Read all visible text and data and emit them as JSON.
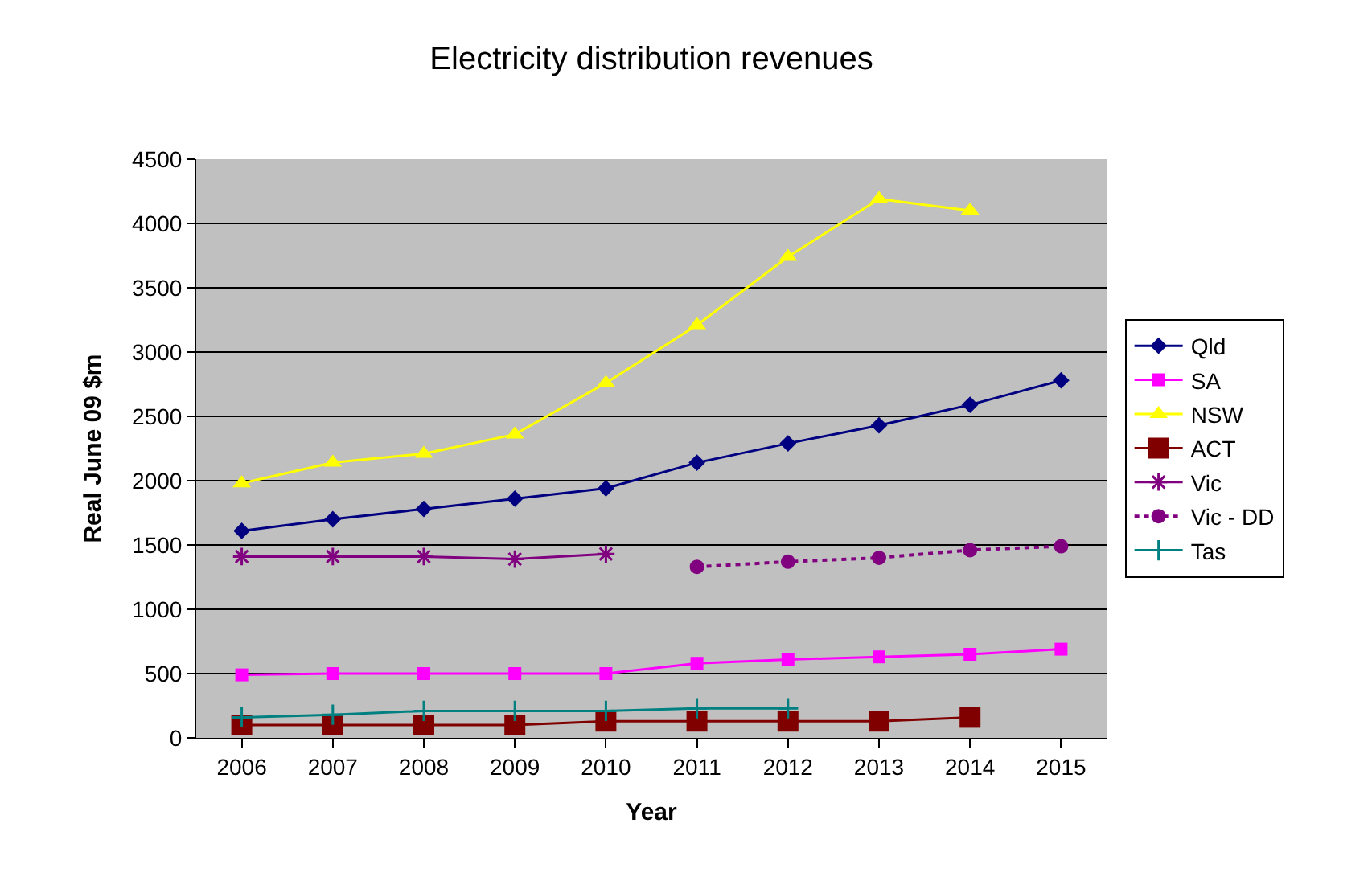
{
  "chart_data": {
    "type": "line",
    "title": "Electricity distribution revenues",
    "xlabel": "Year",
    "ylabel": "Real June 09 $m",
    "categories": [
      "2006",
      "2007",
      "2008",
      "2009",
      "2010",
      "2011",
      "2012",
      "2013",
      "2014",
      "2015"
    ],
    "ylim": [
      0,
      4500
    ],
    "yticks": [
      0,
      500,
      1000,
      1500,
      2000,
      2500,
      3000,
      3500,
      4000,
      4500
    ],
    "grid": "y",
    "legend": "right",
    "series": [
      {
        "name": "Qld",
        "color": "#000080",
        "marker": "diamond",
        "line_style": "solid",
        "values": [
          1610,
          1700,
          1780,
          1860,
          1940,
          2140,
          2290,
          2430,
          2590,
          2780
        ]
      },
      {
        "name": "SA",
        "color": "#ff00ff",
        "marker": "square",
        "line_style": "solid",
        "values": [
          490,
          500,
          500,
          500,
          500,
          580,
          610,
          630,
          650,
          690
        ]
      },
      {
        "name": "NSW",
        "color": "#ffff00",
        "marker": "triangle",
        "line_style": "solid",
        "values": [
          1980,
          2140,
          2210,
          2360,
          2760,
          3210,
          3740,
          4190,
          4100,
          null
        ]
      },
      {
        "name": "ACT",
        "color": "#800000",
        "marker": "square",
        "line_style": "solid",
        "values": [
          100,
          100,
          100,
          100,
          130,
          130,
          130,
          130,
          160,
          null
        ]
      },
      {
        "name": "Vic",
        "color": "#800080",
        "marker": "cross",
        "line_style": "solid",
        "values": [
          1410,
          1410,
          1410,
          1390,
          1430,
          null,
          null,
          null,
          null,
          null
        ]
      },
      {
        "name": "Vic - DD",
        "color": "#800080",
        "marker": "circle",
        "line_style": "dotted",
        "values": [
          null,
          null,
          null,
          null,
          null,
          1330,
          1370,
          1400,
          1460,
          1490
        ]
      },
      {
        "name": "Tas",
        "color": "#008080",
        "marker": "cross",
        "line_style": "solid",
        "values": [
          160,
          180,
          210,
          210,
          210,
          230,
          230,
          null,
          null,
          null
        ]
      }
    ]
  }
}
